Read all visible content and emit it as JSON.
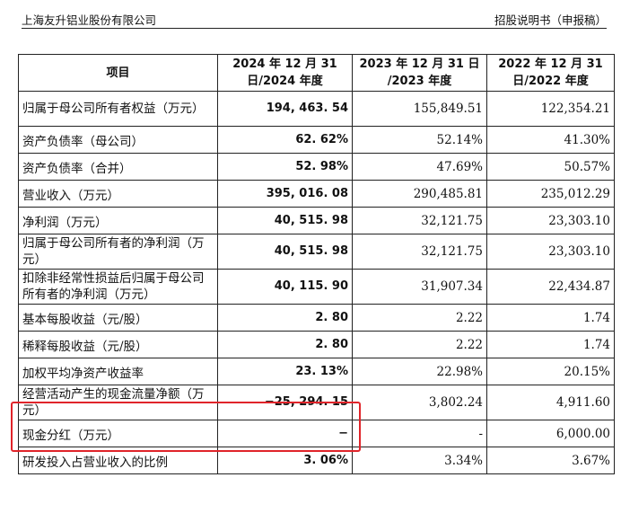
{
  "header": {
    "company": "上海友升铝业股份有限公司",
    "doc_type": "招股说明书（申报稿）"
  },
  "table": {
    "columns": [
      "项目",
      "2024 年 12 月 31 日/2024 年度",
      "2023 年 12 月 31 日 /2023 年度",
      "2022 年 12 月 31 日/2022 年度"
    ],
    "rows": [
      {
        "label": "归属于母公司所有者权益（万元）",
        "v2024": "194, 463. 54",
        "v2023": "155,849.51",
        "v2022": "122,354.21"
      },
      {
        "label": "资产负债率（母公司）",
        "v2024": "62. 62%",
        "v2023": "52.14%",
        "v2022": "41.30%"
      },
      {
        "label": "资产负债率（合并）",
        "v2024": "52. 98%",
        "v2023": "47.69%",
        "v2022": "50.57%"
      },
      {
        "label": "营业收入（万元）",
        "v2024": "395, 016. 08",
        "v2023": "290,485.81",
        "v2022": "235,012.29"
      },
      {
        "label": "净利润（万元）",
        "v2024": "40, 515. 98",
        "v2023": "32,121.75",
        "v2022": "23,303.10"
      },
      {
        "label": "归属于母公司所有者的净利润（万元）",
        "v2024": "40, 515. 98",
        "v2023": "32,121.75",
        "v2022": "23,303.10"
      },
      {
        "label": "扣除非经常性损益后归属于母公司所有者的净利润（万元）",
        "v2024": "40, 115. 90",
        "v2023": "31,907.34",
        "v2022": "22,434.87"
      },
      {
        "label": "基本每股收益（元/股）",
        "v2024": "2. 80",
        "v2023": "2.22",
        "v2022": "1.74"
      },
      {
        "label": "稀释每股收益（元/股）",
        "v2024": "2. 80",
        "v2023": "2.22",
        "v2022": "1.74"
      },
      {
        "label": "加权平均净资产收益率",
        "v2024": "23. 13%",
        "v2023": "22.98%",
        "v2022": "20.15%"
      },
      {
        "label": "经营活动产生的现金流量净额（万元）",
        "v2024": "−25, 294. 15",
        "v2023": "3,802.24",
        "v2022": "4,911.60"
      },
      {
        "label": "现金分红（万元）",
        "v2024": "−",
        "v2023": "-",
        "v2022": "6,000.00"
      },
      {
        "label": "研发投入占营业收入的比例",
        "v2024": "3. 06%",
        "v2023": "3.34%",
        "v2022": "3.67%"
      }
    ]
  },
  "highlight": {
    "color": "#e0242a"
  }
}
